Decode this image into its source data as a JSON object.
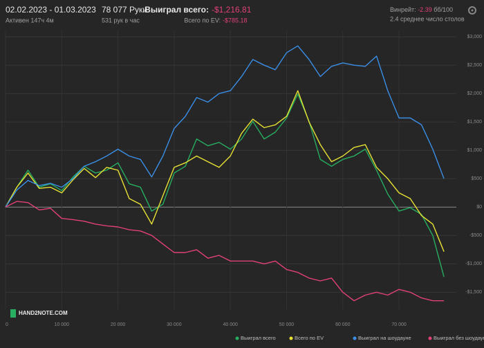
{
  "header": {
    "period": "02.02.2023 - 01.03.2023",
    "active": "Активен 147ч 4м",
    "hands": "78 077 Руки",
    "hands_per_hour": "531 рук в час",
    "won_label": "Выиграл всего:",
    "won_value": "-$1,216.81",
    "ev_label": "Всего по EV:",
    "ev_value": "-$785.18",
    "winrate_label": "Винрейт:",
    "winrate_value": "-2.39",
    "winrate_unit": "бб/100",
    "tables": "2.4 среднее число столов",
    "logo": "HAND2NOTE.COM"
  },
  "chart_data": {
    "type": "line",
    "x": [
      0,
      2000,
      4000,
      6000,
      8000,
      10000,
      12000,
      14000,
      16000,
      18000,
      20000,
      22000,
      24000,
      26000,
      28000,
      30000,
      32000,
      34000,
      36000,
      38000,
      40000,
      42000,
      44000,
      46000,
      48000,
      50000,
      52000,
      54000,
      56000,
      58000,
      60000,
      62000,
      64000,
      66000,
      68000,
      70000,
      72000,
      74000,
      76000,
      78000
    ],
    "xlim": [
      0,
      80200
    ],
    "xticks": [
      0,
      {
        "value": 10000,
        "label": "10 000"
      },
      {
        "value": 20000,
        "label": "20 000"
      },
      {
        "value": 30000,
        "label": "30 000"
      },
      {
        "value": 40000,
        "label": "40 000"
      },
      {
        "value": 50000,
        "label": "50 000"
      },
      {
        "value": 60000,
        "label": "60 000"
      },
      {
        "value": 70000,
        "label": "70 000"
      }
    ],
    "ylim": [
      -1800,
      3100
    ],
    "yticks": [
      {
        "value": -1500,
        "label": "-$1,500"
      },
      {
        "value": -1000,
        "label": "-$1,000"
      },
      {
        "value": -500,
        "label": "-$500"
      },
      {
        "value": 0,
        "label": "$0"
      },
      {
        "value": 500,
        "label": "$500"
      },
      {
        "value": 1000,
        "label": "$1,000"
      },
      {
        "value": 1500,
        "label": "$1,500"
      },
      {
        "value": 2000,
        "label": "$2,000"
      },
      {
        "value": 2500,
        "label": "$2,500"
      },
      {
        "value": 3000,
        "label": "$3,000"
      }
    ],
    "grid": true,
    "series": [
      {
        "name": "Выиграл всего",
        "color": "#27ae60",
        "values": [
          0,
          350,
          650,
          350,
          410,
          290,
          530,
          720,
          600,
          650,
          780,
          410,
          350,
          -70,
          50,
          600,
          720,
          1200,
          1080,
          1140,
          1020,
          1200,
          1510,
          1200,
          1320,
          1570,
          1990,
          1510,
          840,
          720,
          840,
          900,
          1020,
          650,
          230,
          -70,
          -10,
          -130,
          -500,
          -1230
        ]
      },
      {
        "name": "Всего по EV",
        "color": "#e8e234",
        "values": [
          0,
          350,
          600,
          330,
          350,
          250,
          480,
          680,
          520,
          700,
          650,
          150,
          50,
          -300,
          200,
          700,
          780,
          900,
          800,
          700,
          900,
          1300,
          1550,
          1400,
          1450,
          1600,
          2050,
          1500,
          1100,
          800,
          900,
          1050,
          1100,
          700,
          500,
          250,
          150,
          -150,
          -300,
          -785
        ]
      },
      {
        "name": "Выиграл на шоудауне",
        "color": "#3a8ee6",
        "values": [
          0,
          300,
          470,
          380,
          420,
          350,
          500,
          720,
          800,
          900,
          1020,
          900,
          840,
          530,
          900,
          1385,
          1600,
          1930,
          1850,
          2000,
          2050,
          2300,
          2600,
          2500,
          2420,
          2720,
          2840,
          2600,
          2300,
          2480,
          2540,
          2500,
          2480,
          2660,
          2050,
          1570,
          1570,
          1450,
          1020,
          500
        ]
      },
      {
        "name": "Выиграл без шоудауна",
        "color": "#e2407a",
        "values": [
          0,
          100,
          80,
          -50,
          -20,
          -200,
          -220,
          -250,
          -300,
          -330,
          -350,
          -400,
          -420,
          -500,
          -650,
          -800,
          -800,
          -750,
          -900,
          -850,
          -950,
          -950,
          -950,
          -1000,
          -950,
          -1100,
          -1150,
          -1250,
          -1300,
          -1250,
          -1500,
          -1650,
          -1550,
          -1500,
          -1550,
          -1450,
          -1500,
          -1600,
          -1650,
          -1650
        ]
      }
    ]
  }
}
